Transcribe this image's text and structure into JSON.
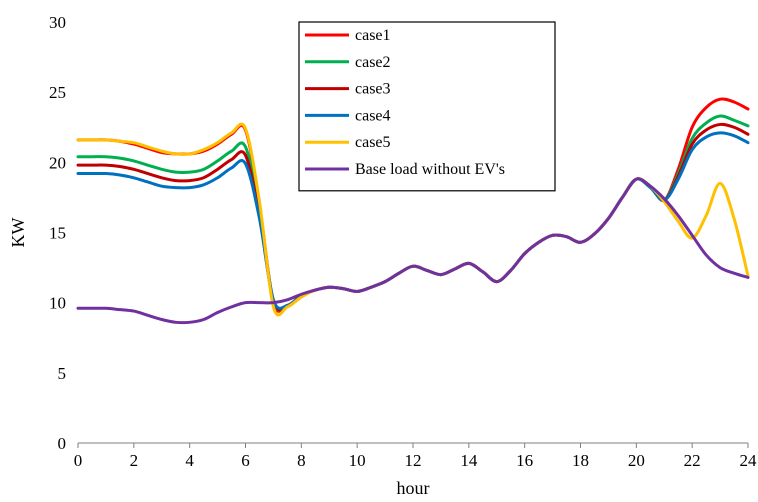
{
  "chart_data": {
    "type": "line",
    "title": "",
    "xlabel": "hour",
    "ylabel": "KW",
    "xlim": [
      0,
      24
    ],
    "ylim": [
      0,
      30
    ],
    "xticks": [
      0,
      2,
      4,
      6,
      8,
      10,
      12,
      14,
      16,
      18,
      20,
      22,
      24
    ],
    "yticks": [
      0,
      5,
      10,
      15,
      20,
      25,
      30
    ],
    "grid": false,
    "legend_position": "top-center",
    "x": [
      0,
      0.5,
      1,
      1.5,
      2,
      2.5,
      3,
      3.5,
      4,
      4.5,
      5,
      5.5,
      6,
      6.5,
      7,
      7.5,
      8,
      8.5,
      9,
      9.5,
      10,
      10.5,
      11,
      11.5,
      12,
      12.5,
      13,
      13.5,
      14,
      14.5,
      15,
      15.5,
      16,
      16.5,
      17,
      17.5,
      18,
      18.5,
      19,
      19.5,
      20,
      20.5,
      21,
      21.5,
      22,
      22.5,
      23,
      23.5,
      24
    ],
    "series": [
      {
        "name": "case1",
        "color": "#ff0000",
        "values": [
          21.6,
          21.6,
          21.6,
          21.5,
          21.3,
          21.0,
          20.7,
          20.6,
          20.6,
          20.8,
          21.3,
          22.0,
          22.3,
          17.0,
          10.0,
          9.8,
          10.5,
          10.9,
          11.1,
          11.0,
          10.8,
          11.1,
          11.5,
          12.1,
          12.6,
          12.3,
          12.0,
          12.4,
          12.8,
          12.2,
          11.5,
          12.3,
          13.5,
          14.3,
          14.8,
          14.7,
          14.3,
          14.9,
          16.0,
          17.5,
          18.8,
          18.3,
          17.3,
          19.5,
          22.5,
          23.9,
          24.5,
          24.3,
          23.8
        ]
      },
      {
        "name": "case2",
        "color": "#00b050",
        "values": [
          20.4,
          20.4,
          20.4,
          20.3,
          20.1,
          19.8,
          19.5,
          19.3,
          19.3,
          19.5,
          20.1,
          20.8,
          21.1,
          16.5,
          10.1,
          9.8,
          10.5,
          10.9,
          11.1,
          11.0,
          10.8,
          11.1,
          11.5,
          12.1,
          12.6,
          12.3,
          12.0,
          12.4,
          12.8,
          12.2,
          11.5,
          12.3,
          13.5,
          14.3,
          14.8,
          14.7,
          14.3,
          14.9,
          16.0,
          17.5,
          18.8,
          18.3,
          17.3,
          19.2,
          21.7,
          22.8,
          23.3,
          23.0,
          22.6
        ]
      },
      {
        "name": "case3",
        "color": "#c00000",
        "values": [
          19.8,
          19.8,
          19.8,
          19.7,
          19.5,
          19.2,
          18.9,
          18.7,
          18.7,
          18.9,
          19.5,
          20.2,
          20.5,
          16.2,
          10.1,
          9.8,
          10.5,
          10.9,
          11.1,
          11.0,
          10.8,
          11.1,
          11.5,
          12.1,
          12.6,
          12.3,
          12.0,
          12.4,
          12.8,
          12.2,
          11.5,
          12.3,
          13.5,
          14.3,
          14.8,
          14.7,
          14.3,
          14.9,
          16.0,
          17.5,
          18.8,
          18.3,
          17.3,
          19.0,
          21.3,
          22.3,
          22.7,
          22.5,
          22.0
        ]
      },
      {
        "name": " case4",
        "color": "#0070c0",
        "values": [
          19.2,
          19.2,
          19.2,
          19.1,
          18.9,
          18.6,
          18.3,
          18.2,
          18.2,
          18.4,
          18.9,
          19.6,
          19.9,
          16.0,
          10.2,
          9.8,
          10.5,
          10.9,
          11.1,
          11.0,
          10.8,
          11.1,
          11.5,
          12.1,
          12.6,
          12.3,
          12.0,
          12.4,
          12.8,
          12.2,
          11.5,
          12.3,
          13.5,
          14.3,
          14.8,
          14.7,
          14.3,
          14.9,
          16.0,
          17.5,
          18.8,
          18.2,
          17.3,
          18.8,
          20.9,
          21.8,
          22.1,
          21.9,
          21.4
        ]
      },
      {
        "name": "case5",
        "color": "#ffc000",
        "values": [
          21.6,
          21.6,
          21.6,
          21.5,
          21.4,
          21.1,
          20.8,
          20.6,
          20.6,
          20.9,
          21.4,
          22.1,
          22.4,
          17.2,
          9.7,
          9.7,
          10.4,
          10.9,
          11.1,
          11.0,
          10.8,
          11.1,
          11.5,
          12.1,
          12.6,
          12.3,
          12.0,
          12.4,
          12.8,
          12.2,
          11.5,
          12.3,
          13.5,
          14.3,
          14.8,
          14.7,
          14.3,
          14.9,
          16.0,
          17.5,
          18.8,
          18.3,
          17.2,
          15.8,
          14.6,
          16.2,
          18.5,
          16.0,
          11.9
        ]
      },
      {
        "name": "Base load without  EV's",
        "color": "#7030a0",
        "values": [
          9.6,
          9.6,
          9.6,
          9.5,
          9.4,
          9.1,
          8.8,
          8.6,
          8.6,
          8.8,
          9.3,
          9.7,
          10.0,
          10.0,
          10.0,
          10.2,
          10.6,
          10.9,
          11.1,
          11.0,
          10.8,
          11.1,
          11.5,
          12.1,
          12.6,
          12.3,
          12.0,
          12.4,
          12.8,
          12.2,
          11.5,
          12.3,
          13.5,
          14.3,
          14.8,
          14.7,
          14.3,
          14.9,
          16.0,
          17.5,
          18.8,
          18.3,
          17.4,
          16.2,
          14.8,
          13.4,
          12.5,
          12.1,
          11.8
        ]
      }
    ]
  }
}
